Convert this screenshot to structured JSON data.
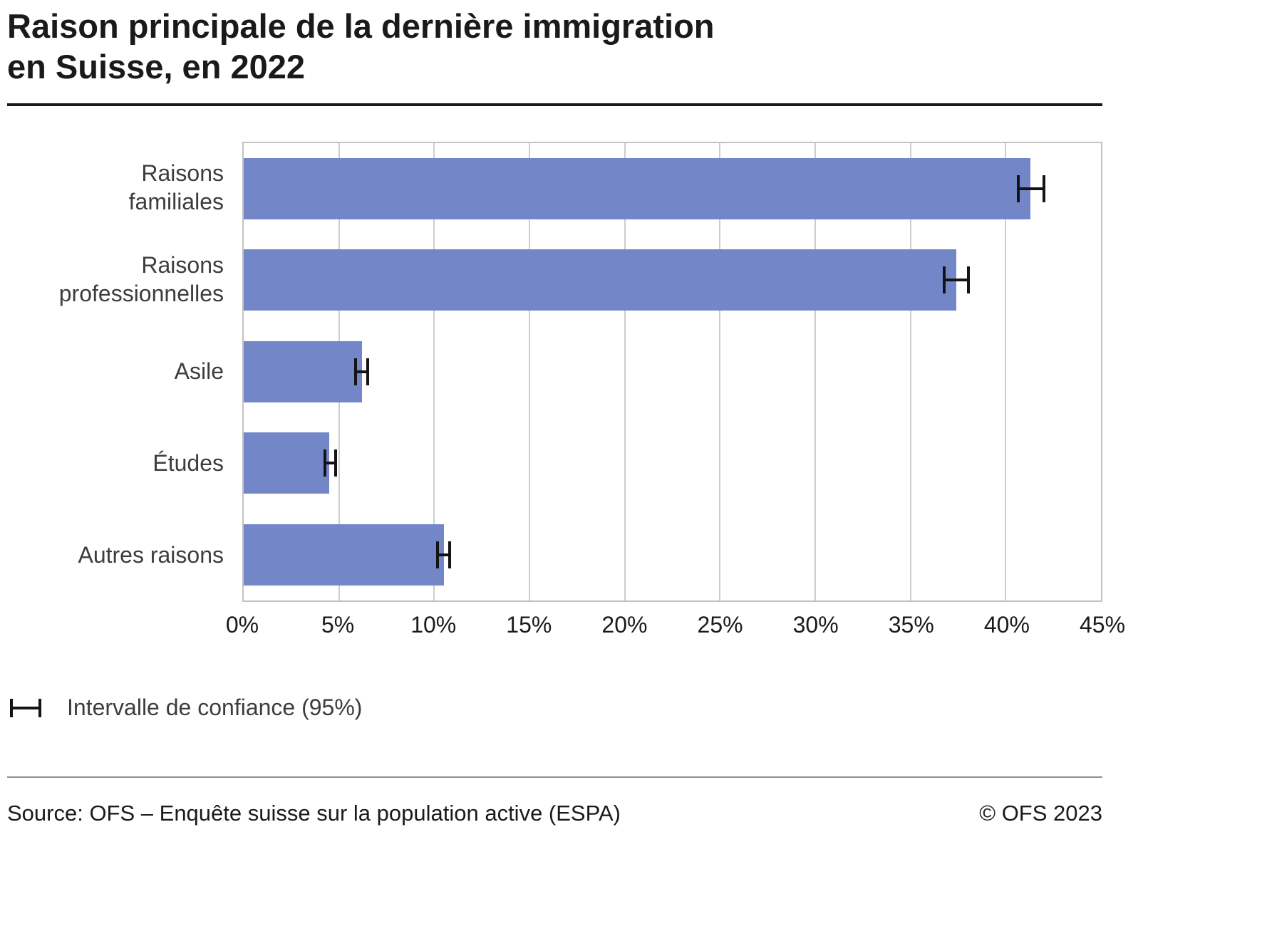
{
  "chart_data": {
    "type": "bar",
    "orientation": "horizontal",
    "title_line1": "Raison principale de la dernière immigration",
    "title_line2": "en Suisse, en 2022",
    "categories": [
      "Raisons familiales",
      "Raisons professionnelles",
      "Asile",
      "Études",
      "Autres raisons"
    ],
    "label_lines": [
      "Raisons\nfamiliales",
      "Raisons\nprofessionnelles",
      "Asile",
      "Études",
      "Autres raisons"
    ],
    "values": [
      41.3,
      37.4,
      6.2,
      4.5,
      10.5
    ],
    "ci_low": [
      40.6,
      36.7,
      5.8,
      4.2,
      10.1
    ],
    "ci_high": [
      42.1,
      38.1,
      6.6,
      4.9,
      10.9
    ],
    "xlim": [
      0,
      45
    ],
    "xticks": [
      0,
      5,
      10,
      15,
      20,
      25,
      30,
      35,
      40,
      45
    ],
    "xtick_labels": [
      "0%",
      "5%",
      "10%",
      "15%",
      "20%",
      "25%",
      "30%",
      "35%",
      "40%",
      "45%"
    ],
    "bar_color": "#7386c8",
    "grid": true,
    "legend_label": "Intervalle de confiance (95%)",
    "source": "Source: OFS – Enquête suisse sur la population active (ESPA)",
    "copyright": "© OFS 2023"
  }
}
